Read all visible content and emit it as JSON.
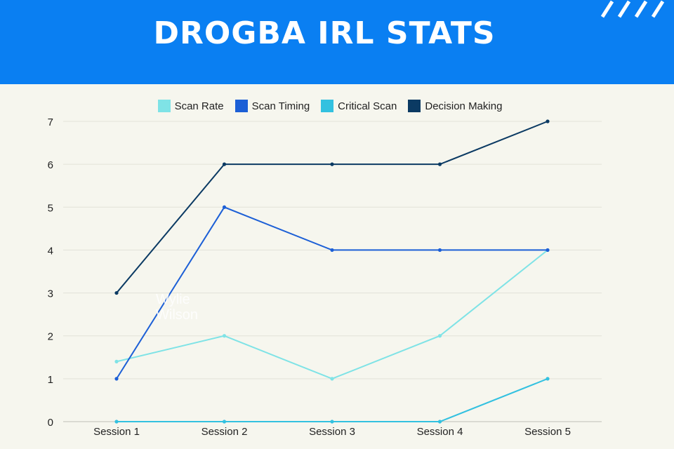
{
  "header": {
    "title": "DROGBA IRL STATS",
    "color": "#0a7ff2"
  },
  "watermark": [
    "Wylie",
    "Wilson"
  ],
  "chart_data": {
    "type": "line",
    "categories": [
      "Session 1",
      "Session 2",
      "Session 3",
      "Session 4",
      "Session 5"
    ],
    "ylim": [
      0,
      7
    ],
    "yticks": [
      0,
      1,
      2,
      3,
      4,
      5,
      6,
      7
    ],
    "grid": true,
    "legend_position": "top",
    "series": [
      {
        "name": "Scan Rate",
        "color": "#7fe3e6",
        "values": [
          1.4,
          2,
          1,
          2,
          4
        ]
      },
      {
        "name": "Scan Timing",
        "color": "#1c5fd6",
        "values": [
          1,
          5,
          4,
          4,
          4
        ]
      },
      {
        "name": "Critical Scan",
        "color": "#33c1e0",
        "values": [
          0,
          0,
          0,
          0,
          1
        ]
      },
      {
        "name": "Decision Making",
        "color": "#0b3a63",
        "values": [
          3,
          6,
          6,
          6,
          7
        ]
      }
    ]
  }
}
